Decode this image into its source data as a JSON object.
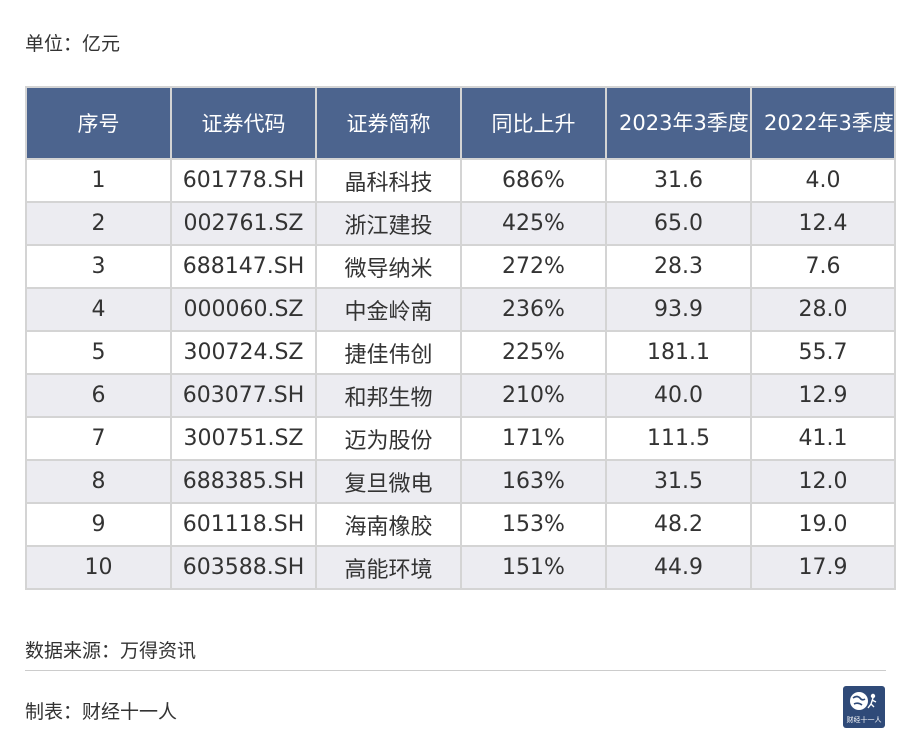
{
  "unit_label": "单位：亿元",
  "table": {
    "headers": [
      "序号",
      "证券代码",
      "证券简称",
      "同比上升",
      "2023年3季度",
      "2022年3季度"
    ],
    "rows": [
      [
        "1",
        "601778.SH",
        "晶科科技",
        "686%",
        "31.6",
        "4.0"
      ],
      [
        "2",
        "002761.SZ",
        "浙江建投",
        "425%",
        "65.0",
        "12.4"
      ],
      [
        "3",
        "688147.SH",
        "微导纳米",
        "272%",
        "28.3",
        "7.6"
      ],
      [
        "4",
        "000060.SZ",
        "中金岭南",
        "236%",
        "93.9",
        "28.0"
      ],
      [
        "5",
        "300724.SZ",
        "捷佳伟创",
        "225%",
        "181.1",
        "55.7"
      ],
      [
        "6",
        "603077.SH",
        "和邦生物",
        "210%",
        "40.0",
        "12.9"
      ],
      [
        "7",
        "300751.SZ",
        "迈为股份",
        "171%",
        "111.5",
        "41.1"
      ],
      [
        "8",
        "688385.SH",
        "复旦微电",
        "163%",
        "31.5",
        "12.0"
      ],
      [
        "9",
        "601118.SH",
        "海南橡胶",
        "153%",
        "48.2",
        "19.0"
      ],
      [
        "10",
        "603588.SH",
        "高能环境",
        "151%",
        "44.9",
        "17.9"
      ]
    ]
  },
  "source_label": "数据来源：万得资讯",
  "maker_label": "制表：财经十一人",
  "logo": {
    "text": "财经十一人",
    "icon": "globe-runner-icon"
  },
  "colors": {
    "header_bg": "#4c648e",
    "stripe_bg": "#ececf1",
    "logo_bg": "#2f4a78"
  }
}
